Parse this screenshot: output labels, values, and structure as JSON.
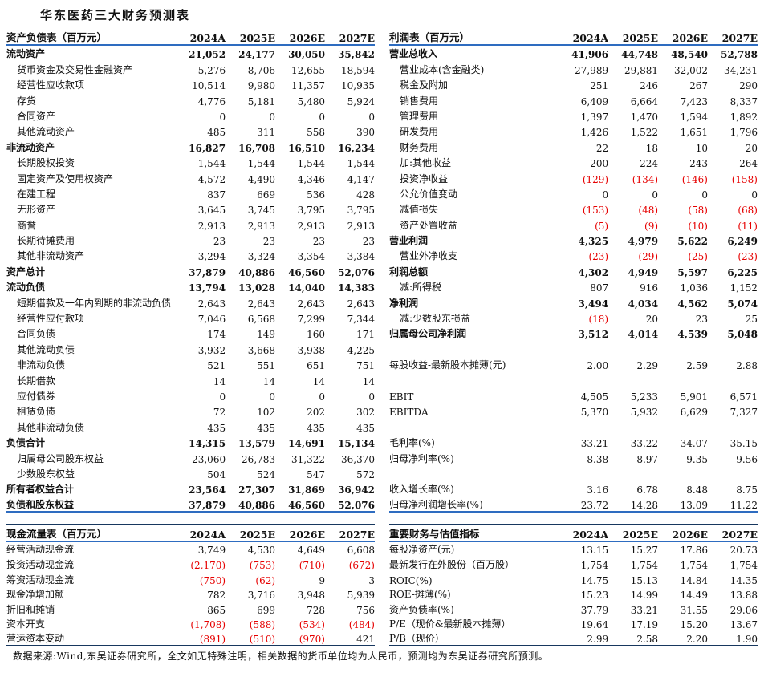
{
  "title": "华东医药三大财务预测表",
  "columns": [
    "2024A",
    "2025E",
    "2026E",
    "2027E"
  ],
  "colors": {
    "accent_blue": "#2e6cc0",
    "dark_border": "#17375e",
    "negative_red": "#e60000"
  },
  "balance_sheet": {
    "header": "资产负债表（百万元）",
    "rows": [
      {
        "label": "流动资产",
        "style": "bold",
        "values": [
          "21,052",
          "24,177",
          "30,050",
          "35,842"
        ]
      },
      {
        "label": "货币资金及交易性金融资产",
        "style": "indent",
        "values": [
          "5,276",
          "8,706",
          "12,655",
          "18,594"
        ]
      },
      {
        "label": "经营性应收款项",
        "style": "indent",
        "values": [
          "10,514",
          "9,980",
          "11,357",
          "10,935"
        ]
      },
      {
        "label": "存货",
        "style": "indent",
        "values": [
          "4,776",
          "5,181",
          "5,480",
          "5,924"
        ]
      },
      {
        "label": "合同资产",
        "style": "indent",
        "values": [
          "0",
          "0",
          "0",
          "0"
        ]
      },
      {
        "label": "其他流动资产",
        "style": "indent",
        "values": [
          "485",
          "311",
          "558",
          "390"
        ]
      },
      {
        "label": "非流动资产",
        "style": "bold",
        "values": [
          "16,827",
          "16,708",
          "16,510",
          "16,234"
        ]
      },
      {
        "label": "长期股权投资",
        "style": "indent",
        "values": [
          "1,544",
          "1,544",
          "1,544",
          "1,544"
        ]
      },
      {
        "label": "固定资产及使用权资产",
        "style": "indent",
        "values": [
          "4,572",
          "4,490",
          "4,346",
          "4,147"
        ]
      },
      {
        "label": "在建工程",
        "style": "indent",
        "values": [
          "837",
          "669",
          "536",
          "428"
        ]
      },
      {
        "label": "无形资产",
        "style": "indent",
        "values": [
          "3,645",
          "3,745",
          "3,795",
          "3,795"
        ]
      },
      {
        "label": "商誉",
        "style": "indent",
        "values": [
          "2,913",
          "2,913",
          "2,913",
          "2,913"
        ]
      },
      {
        "label": "长期待摊费用",
        "style": "indent",
        "values": [
          "23",
          "23",
          "23",
          "23"
        ]
      },
      {
        "label": "其他非流动资产",
        "style": "indent",
        "values": [
          "3,294",
          "3,324",
          "3,354",
          "3,384"
        ]
      },
      {
        "label": "资产总计",
        "style": "bold",
        "values": [
          "37,879",
          "40,886",
          "46,560",
          "52,076"
        ]
      },
      {
        "label": "流动负债",
        "style": "bold",
        "values": [
          "13,794",
          "13,028",
          "14,040",
          "14,383"
        ]
      },
      {
        "label": "短期借款及一年内到期的非流动负债",
        "style": "indent",
        "values": [
          "2,643",
          "2,643",
          "2,643",
          "2,643"
        ]
      },
      {
        "label": "经营性应付款项",
        "style": "indent",
        "values": [
          "7,046",
          "6,568",
          "7,299",
          "7,344"
        ]
      },
      {
        "label": "合同负债",
        "style": "indent",
        "values": [
          "174",
          "149",
          "160",
          "171"
        ]
      },
      {
        "label": "其他流动负债",
        "style": "indent",
        "values": [
          "3,932",
          "3,668",
          "3,938",
          "4,225"
        ]
      },
      {
        "label": "非流动负债",
        "style": "indent",
        "values": [
          "521",
          "551",
          "651",
          "751"
        ]
      },
      {
        "label": "长期借款",
        "style": "indent",
        "values": [
          "14",
          "14",
          "14",
          "14"
        ]
      },
      {
        "label": "应付债券",
        "style": "indent",
        "values": [
          "0",
          "0",
          "0",
          "0"
        ]
      },
      {
        "label": "租赁负债",
        "style": "indent",
        "values": [
          "72",
          "102",
          "202",
          "302"
        ]
      },
      {
        "label": "其他非流动负债",
        "style": "indent",
        "values": [
          "435",
          "435",
          "435",
          "435"
        ]
      },
      {
        "label": "负债合计",
        "style": "bold",
        "values": [
          "14,315",
          "13,579",
          "14,691",
          "15,134"
        ]
      },
      {
        "label": "归属母公司股东权益",
        "style": "indent",
        "values": [
          "23,060",
          "26,783",
          "31,322",
          "36,370"
        ]
      },
      {
        "label": "少数股东权益",
        "style": "indent",
        "values": [
          "504",
          "524",
          "547",
          "572"
        ]
      },
      {
        "label": "所有者权益合计",
        "style": "bold",
        "values": [
          "23,564",
          "27,307",
          "31,869",
          "36,942"
        ]
      },
      {
        "label": "负债和股东权益",
        "style": "bold",
        "values": [
          "37,879",
          "40,886",
          "46,560",
          "52,076"
        ]
      }
    ]
  },
  "income_statement": {
    "header": "利润表（百万元）",
    "rows": [
      {
        "label": "营业总收入",
        "style": "bold",
        "values": [
          "41,906",
          "44,748",
          "48,540",
          "52,788"
        ]
      },
      {
        "label": "营业成本(含金融类)",
        "style": "indent",
        "values": [
          "27,989",
          "29,881",
          "32,002",
          "34,231"
        ]
      },
      {
        "label": "税金及附加",
        "style": "indent",
        "values": [
          "251",
          "246",
          "267",
          "290"
        ]
      },
      {
        "label": "销售费用",
        "style": "indent",
        "values": [
          "6,409",
          "6,664",
          "7,423",
          "8,337"
        ]
      },
      {
        "label": "管理费用",
        "style": "indent",
        "values": [
          "1,397",
          "1,470",
          "1,594",
          "1,892"
        ]
      },
      {
        "label": "研发费用",
        "style": "indent",
        "values": [
          "1,426",
          "1,522",
          "1,651",
          "1,796"
        ]
      },
      {
        "label": "财务费用",
        "style": "indent",
        "values": [
          "22",
          "18",
          "10",
          "20"
        ]
      },
      {
        "label": "加:其他收益",
        "style": "indent",
        "values": [
          "200",
          "224",
          "243",
          "264"
        ]
      },
      {
        "label": "投资净收益",
        "style": "indent",
        "values": [
          "(129)",
          "(134)",
          "(146)",
          "(158)"
        ]
      },
      {
        "label": "公允价值变动",
        "style": "indent",
        "values": [
          "0",
          "0",
          "0",
          "0"
        ]
      },
      {
        "label": "减值损失",
        "style": "indent",
        "values": [
          "(153)",
          "(48)",
          "(58)",
          "(68)"
        ]
      },
      {
        "label": "资产处置收益",
        "style": "indent",
        "values": [
          "(5)",
          "(9)",
          "(10)",
          "(11)"
        ]
      },
      {
        "label": "营业利润",
        "style": "bold",
        "values": [
          "4,325",
          "4,979",
          "5,622",
          "6,249"
        ]
      },
      {
        "label": "营业外净收支",
        "style": "indent",
        "values": [
          "(23)",
          "(29)",
          "(25)",
          "(23)"
        ]
      },
      {
        "label": "利润总额",
        "style": "bold",
        "values": [
          "4,302",
          "4,949",
          "5,597",
          "6,225"
        ]
      },
      {
        "label": "减:所得税",
        "style": "indent",
        "values": [
          "807",
          "916",
          "1,036",
          "1,152"
        ]
      },
      {
        "label": "净利润",
        "style": "bold",
        "values": [
          "3,494",
          "4,034",
          "4,562",
          "5,074"
        ]
      },
      {
        "label": "减:少数股东损益",
        "style": "indent",
        "values": [
          "(18)",
          "20",
          "23",
          "25"
        ]
      },
      {
        "label": "归属母公司净利润",
        "style": "bold",
        "values": [
          "3,512",
          "4,014",
          "4,539",
          "5,048"
        ]
      },
      {
        "label": "",
        "style": "blank",
        "values": [
          "",
          "",
          "",
          ""
        ]
      },
      {
        "label": "每股收益-最新股本摊薄(元)",
        "style": "",
        "values": [
          "2.00",
          "2.29",
          "2.59",
          "2.88"
        ]
      },
      {
        "label": "",
        "style": "blank",
        "values": [
          "",
          "",
          "",
          ""
        ]
      },
      {
        "label": "EBIT",
        "style": "",
        "values": [
          "4,505",
          "5,233",
          "5,901",
          "6,571"
        ]
      },
      {
        "label": "EBITDA",
        "style": "",
        "values": [
          "5,370",
          "5,932",
          "6,629",
          "7,327"
        ]
      },
      {
        "label": "",
        "style": "blank",
        "values": [
          "",
          "",
          "",
          ""
        ]
      },
      {
        "label": "毛利率(%)",
        "style": "",
        "values": [
          "33.21",
          "33.22",
          "34.07",
          "35.15"
        ]
      },
      {
        "label": "归母净利率(%)",
        "style": "",
        "values": [
          "8.38",
          "8.97",
          "9.35",
          "9.56"
        ]
      },
      {
        "label": "",
        "style": "blank",
        "values": [
          "",
          "",
          "",
          ""
        ]
      },
      {
        "label": "收入增长率(%)",
        "style": "",
        "values": [
          "3.16",
          "6.78",
          "8.48",
          "8.75"
        ]
      },
      {
        "label": "归母净利润增长率(%)",
        "style": "",
        "values": [
          "23.72",
          "14.28",
          "13.09",
          "11.22"
        ]
      }
    ]
  },
  "cash_flow": {
    "header": "现金流量表（百万元）",
    "rows": [
      {
        "label": "经营活动现金流",
        "style": "",
        "values": [
          "3,749",
          "4,530",
          "4,649",
          "6,608"
        ]
      },
      {
        "label": "投资活动现金流",
        "style": "",
        "values": [
          "(2,170)",
          "(753)",
          "(710)",
          "(672)"
        ]
      },
      {
        "label": "筹资活动现金流",
        "style": "",
        "values": [
          "(750)",
          "(62)",
          "9",
          "3"
        ]
      },
      {
        "label": "现金净增加额",
        "style": "",
        "values": [
          "782",
          "3,716",
          "3,948",
          "5,939"
        ]
      },
      {
        "label": "折旧和摊销",
        "style": "",
        "values": [
          "865",
          "699",
          "728",
          "756"
        ]
      },
      {
        "label": "资本开支",
        "style": "",
        "values": [
          "(1,708)",
          "(588)",
          "(534)",
          "(484)"
        ]
      },
      {
        "label": "营运资本变动",
        "style": "",
        "values": [
          "(891)",
          "(510)",
          "(970)",
          "421"
        ]
      }
    ]
  },
  "metrics": {
    "header": "重要财务与估值指标",
    "rows": [
      {
        "label": "每股净资产(元)",
        "style": "",
        "values": [
          "13.15",
          "15.27",
          "17.86",
          "20.73"
        ]
      },
      {
        "label": "最新发行在外股份（百万股）",
        "style": "",
        "values": [
          "1,754",
          "1,754",
          "1,754",
          "1,754"
        ]
      },
      {
        "label": "ROIC(%)",
        "style": "",
        "values": [
          "14.75",
          "15.13",
          "14.84",
          "14.35"
        ]
      },
      {
        "label": "ROE-摊薄(%)",
        "style": "",
        "values": [
          "15.23",
          "14.99",
          "14.49",
          "13.88"
        ]
      },
      {
        "label": "资产负债率(%)",
        "style": "",
        "values": [
          "37.79",
          "33.21",
          "31.55",
          "29.06"
        ]
      },
      {
        "label": "P/E（现价&最新股本摊薄）",
        "style": "",
        "values": [
          "19.64",
          "17.19",
          "15.20",
          "13.67"
        ]
      },
      {
        "label": "P/B（现价）",
        "style": "",
        "values": [
          "2.99",
          "2.58",
          "2.20",
          "1.90"
        ]
      }
    ]
  },
  "footer": "数据来源:Wind,东吴证券研究所，全文如无特殊注明，相关数据的货币单位均为人民币，预测均为东吴证券研究所预测。"
}
